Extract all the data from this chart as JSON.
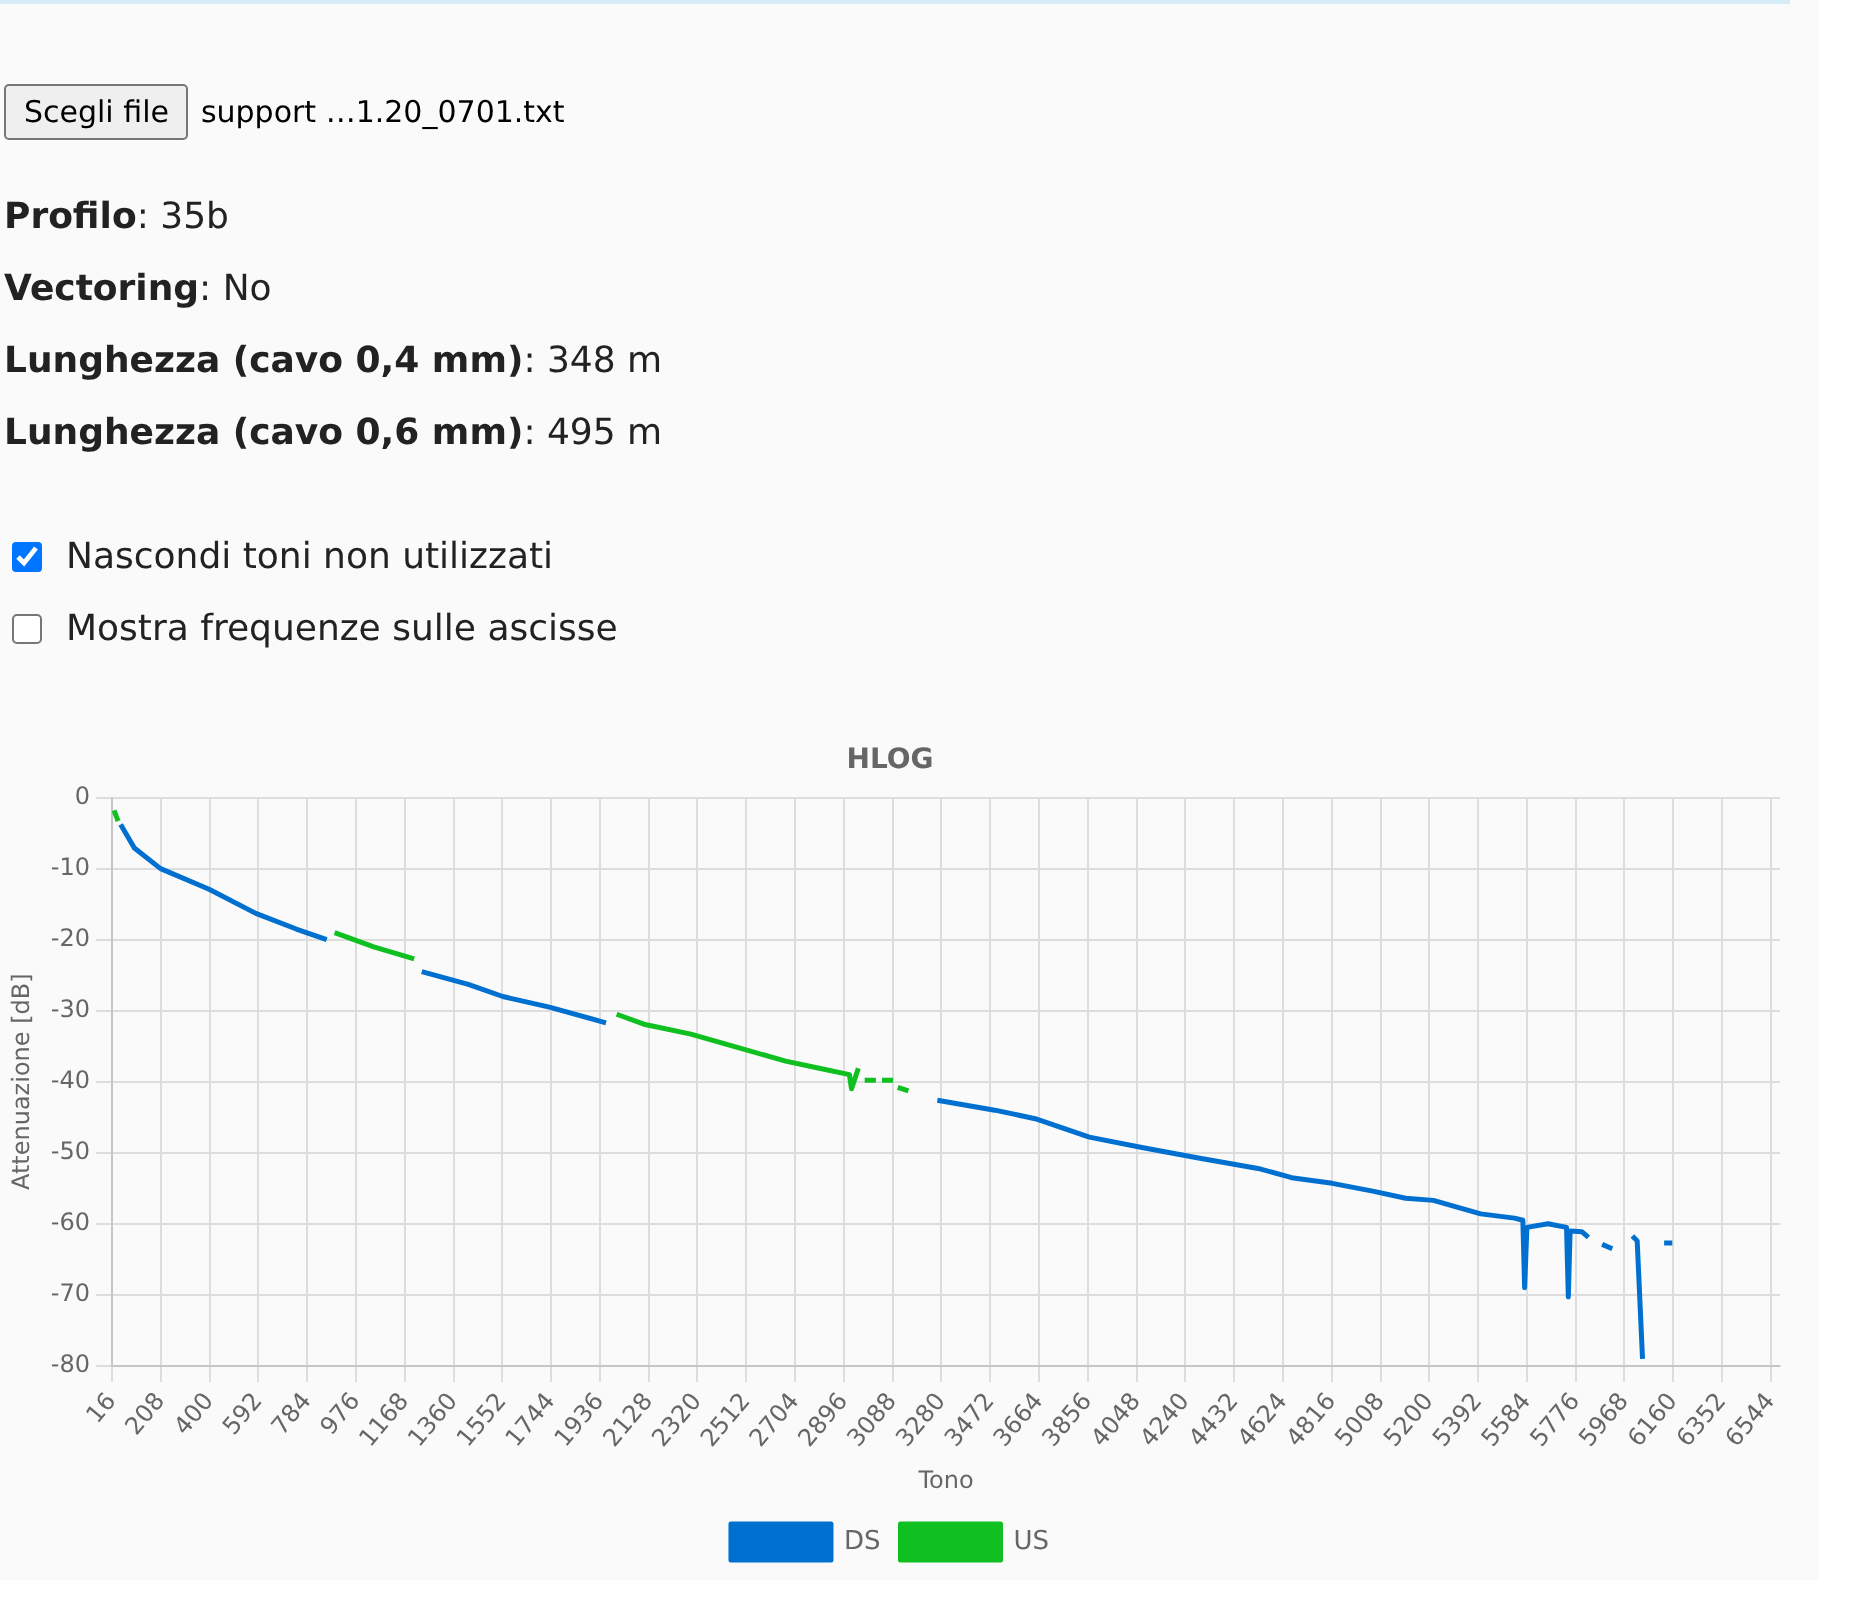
{
  "chart_data": {
    "type": "line",
    "title": "HLOG",
    "xlabel": "Tono",
    "ylabel": "Attenuazione [dB]",
    "annotations": [
      "Scegli file",
      "support …1.20_0701.txt",
      "Profilo: 35b",
      "Vectoring: No",
      "Lunghezza (cavo 0,4 mm): 348 m",
      "Lunghezza (cavo 0,6 mm): 495 m",
      "Nascondi toni non utilizzati",
      "Mostra frequenze sulle ascisse"
    ],
    "xlim": [
      16,
      6580
    ],
    "xticks": [
      16,
      208,
      400,
      592,
      784,
      976,
      1168,
      1360,
      1552,
      1744,
      1936,
      2128,
      2320,
      2512,
      2704,
      2896,
      3088,
      3280,
      3472,
      3664,
      3856,
      4048,
      4240,
      4432,
      4624,
      4816,
      5008,
      5200,
      5392,
      5584,
      5776,
      5968,
      6160,
      6352,
      6544
    ],
    "ylim": [
      -80,
      0
    ],
    "yticks": [
      -80,
      -70,
      -60,
      -50,
      -40,
      -30,
      -20,
      -10,
      0
    ],
    "grid": true,
    "legend": "bottom",
    "marker": "none",
    "line_style": "solid",
    "series": [
      {
        "name": "DS",
        "color": "#0070d0",
        "x": [
          50,
          104,
          207,
          398,
          582,
          741,
          861,
          900,
          1235,
          1418,
          1554,
          1737,
          1960,
          2000,
          3264,
          3490,
          3649,
          3862,
          4074,
          4286,
          4526,
          4658,
          4818,
          4977,
          5107,
          5216,
          5402,
          5535,
          5568,
          5575,
          5584,
          5667,
          5740,
          5747,
          5754,
          5800,
          5826,
          5850,
          5880,
          5920,
          5960,
          5999,
          6018,
          6039,
          6080,
          6124,
          6156
        ],
        "values": [
          -3.8,
          -7.1,
          -10,
          -12.9,
          -16.3,
          -18.5,
          -20,
          null,
          -24.5,
          -26.3,
          -28,
          -29.5,
          -31.7,
          null,
          -42.6,
          -44,
          -45.2,
          -47.8,
          -49.3,
          -50.7,
          -52.2,
          -53.5,
          -54.3,
          -55.4,
          -56.4,
          -56.7,
          -58.6,
          -59.2,
          -59.5,
          -69,
          -60.5,
          -60,
          -60.5,
          -70.3,
          -61,
          -61.1,
          -61.9,
          null,
          -62.9,
          -63.5,
          null,
          -61.7,
          -62.4,
          -79,
          null,
          -62.7,
          -62.7
        ]
      },
      {
        "name": "US",
        "color": "#10c020",
        "x": [
          24,
          40,
          60,
          892,
          1046,
          1205,
          1230,
          2002,
          2109,
          2294,
          2480,
          2667,
          2799,
          2918,
          2926,
          2953,
          2966,
          2978,
          3022,
          3036,
          3046,
          3090,
          3100,
          3108,
          3150
        ],
        "values": [
          -1.8,
          -3.3,
          null,
          -19,
          -21,
          -22.7,
          null,
          -30.5,
          -31.9,
          -33.3,
          -35.2,
          -37.1,
          -38.1,
          -39,
          -41,
          -38.1,
          null,
          -39.8,
          -39.8,
          null,
          -39.8,
          -39.8,
          null,
          -40.8,
          -41.3
        ]
      }
    ]
  }
}
